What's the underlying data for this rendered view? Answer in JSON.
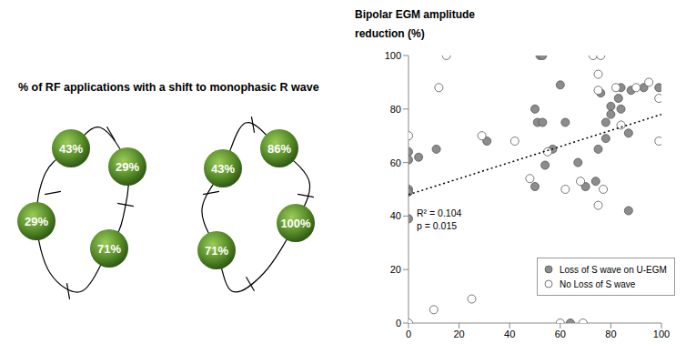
{
  "diagram": {
    "title": "% of RF applications with a shift to monophasic R wave",
    "loops": [
      {
        "values": [
          43,
          29,
          71,
          29
        ],
        "value_labels": [
          "43%",
          "29%",
          "71%",
          "29%"
        ]
      },
      {
        "values": [
          43,
          86,
          100,
          71
        ],
        "value_labels": [
          "43%",
          "86%",
          "100%",
          "71%"
        ]
      }
    ]
  },
  "chart_data": {
    "type": "scatter",
    "ylabel": "Bipolar EGM amplitude reduction (%)",
    "annotations": [
      "R² = 0.104",
      "p = 0.015"
    ],
    "xlim": [
      0,
      100
    ],
    "xticks": [
      0,
      20,
      40,
      60,
      80,
      100
    ],
    "ylim": [
      0,
      100
    ],
    "yticks": [
      0,
      20,
      40,
      60,
      80,
      100
    ],
    "legend": "bottom-right",
    "series": [
      {
        "name": "Loss of S wave on U-EGM",
        "color": "#8c8c8c",
        "marker": "circle",
        "x": [
          0,
          0,
          0,
          0,
          0,
          4,
          11,
          31,
          50,
          50,
          51,
          52,
          53,
          53,
          54,
          57,
          60,
          62,
          64,
          67,
          70,
          74,
          75,
          76,
          78,
          78,
          80,
          80,
          83,
          84,
          84,
          87,
          87,
          88,
          93,
          99
        ],
        "values": [
          64,
          61,
          50,
          49,
          39,
          62,
          65,
          68,
          80,
          51,
          75,
          100,
          100,
          75,
          59,
          65,
          89,
          75,
          0,
          60,
          51,
          53,
          65,
          86,
          75,
          69,
          81,
          78,
          84,
          88,
          80,
          71,
          42,
          87,
          88,
          88
        ]
      },
      {
        "name": "No Loss of S wave",
        "color": "#ffffff",
        "marker": "circle",
        "x": [
          0,
          0,
          10,
          12,
          15,
          25,
          29,
          42,
          48,
          55,
          60,
          62,
          68,
          69,
          73,
          75,
          75,
          75,
          76,
          77,
          82,
          84,
          90,
          95,
          99,
          99
        ],
        "values": [
          70,
          0,
          5,
          88,
          100,
          9,
          70,
          68,
          54,
          64,
          0,
          50,
          53,
          0,
          100,
          93,
          87,
          44,
          100,
          50,
          88,
          74,
          88,
          90,
          84,
          68
        ]
      },
      {
        "type": "line",
        "line_style": "dotted",
        "color": "#000000",
        "x": [
          0,
          100
        ],
        "values": [
          48,
          78
        ]
      }
    ]
  }
}
